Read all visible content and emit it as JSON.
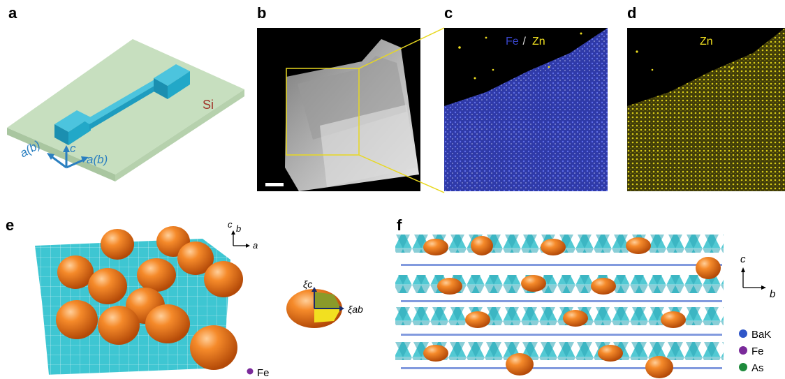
{
  "panels": {
    "a": {
      "letter": "a",
      "substrate_label": "Si",
      "axis_c": "c",
      "axis_a_left": "a(b)",
      "axis_a_right": "a(b)"
    },
    "b": {
      "letter": "b"
    },
    "c": {
      "letter": "c",
      "label_fe": "Fe",
      "label_sep": " / ",
      "label_zn": "Zn"
    },
    "d": {
      "letter": "d",
      "label_zn": "Zn"
    },
    "e": {
      "letter": "e",
      "axis_c": "c",
      "axis_b": "b",
      "axis_a": "a",
      "xi_c": "ξc",
      "xi_ab": "ξab",
      "legend_fe": "Fe"
    },
    "f": {
      "letter": "f",
      "axis_c": "c",
      "axis_b": "b",
      "legend": [
        {
          "label": "BaK",
          "color": "#2f56c8"
        },
        {
          "label": "Fe",
          "color": "#7a2a9a"
        },
        {
          "label": "As",
          "color": "#1e8a3c"
        }
      ]
    }
  },
  "colors": {
    "substrate": "#c7dfbf",
    "device": "#22a8c8",
    "axis_blue": "#2a7fc0",
    "si_red": "#a0342a",
    "fe_blue": "#3845c8",
    "zn_yellow": "#f0e020",
    "sphere_orange": "#f07820",
    "plane_cyan": "#3ec6d2"
  }
}
